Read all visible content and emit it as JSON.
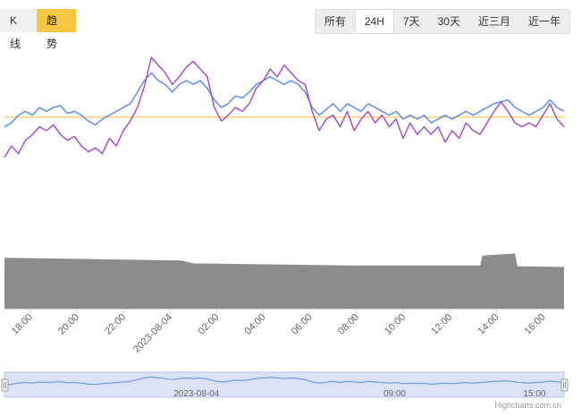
{
  "tabs": [
    {
      "label": "K线",
      "active": false
    },
    {
      "label": "趋势",
      "active": true
    }
  ],
  "ranges": [
    {
      "label": "所有",
      "selected": false
    },
    {
      "label": "24H",
      "selected": true
    },
    {
      "label": "7天",
      "selected": false
    },
    {
      "label": "30天",
      "selected": false
    },
    {
      "label": "近三月",
      "selected": false
    },
    {
      "label": "近一年",
      "selected": false
    }
  ],
  "credit": "Highcharts.com.cn",
  "colors": {
    "accent": "#f6c744",
    "series_blue": "#5b8ff0",
    "series_purple": "#a84fcb",
    "reference_line": "#f2c94c",
    "volume": "#8c8c8c",
    "navigator_fill": "#dce3f6"
  },
  "chart_data": {
    "type": "line",
    "x_unit": "hours relative to 00:00 on 2023-08-04",
    "x_range": [
      -7.1,
      16.9
    ],
    "x_ticks": [
      {
        "x": -6,
        "label": "18:00"
      },
      {
        "x": -4,
        "label": "20:00"
      },
      {
        "x": -2,
        "label": "22:00"
      },
      {
        "x": 0,
        "label": "2023-08-04"
      },
      {
        "x": 2,
        "label": "02:00"
      },
      {
        "x": 4,
        "label": "04:00"
      },
      {
        "x": 6,
        "label": "06:00"
      },
      {
        "x": 8,
        "label": "08:00"
      },
      {
        "x": 10,
        "label": "10:00"
      },
      {
        "x": 12,
        "label": "12:00"
      },
      {
        "x": 14,
        "label": "14:00"
      },
      {
        "x": 16,
        "label": "16:00"
      }
    ],
    "y_range": [
      0,
      100
    ],
    "reference_line": 67,
    "series": [
      {
        "key": "blue",
        "values": [
          [
            -7.1,
            62
          ],
          [
            -6.8,
            64
          ],
          [
            -6.5,
            68
          ],
          [
            -6.2,
            70
          ],
          [
            -5.9,
            68
          ],
          [
            -5.6,
            72
          ],
          [
            -5.3,
            70
          ],
          [
            -5,
            72
          ],
          [
            -4.7,
            73
          ],
          [
            -4.4,
            69
          ],
          [
            -4.1,
            70
          ],
          [
            -3.8,
            68
          ],
          [
            -3.5,
            65
          ],
          [
            -3.2,
            63
          ],
          [
            -2.9,
            66
          ],
          [
            -2.6,
            68
          ],
          [
            -2.3,
            70
          ],
          [
            -2,
            72
          ],
          [
            -1.7,
            74
          ],
          [
            -1.4,
            80
          ],
          [
            -1.1,
            86
          ],
          [
            -0.8,
            90
          ],
          [
            -0.5,
            86
          ],
          [
            -0.2,
            84
          ],
          [
            0.1,
            80
          ],
          [
            0.4,
            84
          ],
          [
            0.7,
            86
          ],
          [
            1,
            84
          ],
          [
            1.3,
            86
          ],
          [
            1.6,
            82
          ],
          [
            1.9,
            76
          ],
          [
            2.2,
            72
          ],
          [
            2.5,
            74
          ],
          [
            2.8,
            78
          ],
          [
            3.1,
            77
          ],
          [
            3.4,
            80
          ],
          [
            3.7,
            84
          ],
          [
            4,
            86
          ],
          [
            4.3,
            88
          ],
          [
            4.6,
            86
          ],
          [
            4.9,
            84
          ],
          [
            5.2,
            86
          ],
          [
            5.5,
            84
          ],
          [
            5.8,
            80
          ],
          [
            6.1,
            72
          ],
          [
            6.4,
            68
          ],
          [
            6.7,
            71
          ],
          [
            7,
            74
          ],
          [
            7.3,
            70
          ],
          [
            7.6,
            74
          ],
          [
            7.9,
            72
          ],
          [
            8.2,
            70
          ],
          [
            8.5,
            74
          ],
          [
            8.8,
            72
          ],
          [
            9.1,
            70
          ],
          [
            9.4,
            68
          ],
          [
            9.7,
            70
          ],
          [
            10,
            66
          ],
          [
            10.3,
            68
          ],
          [
            10.6,
            66
          ],
          [
            10.9,
            68
          ],
          [
            11.2,
            64
          ],
          [
            11.5,
            66
          ],
          [
            11.8,
            68
          ],
          [
            12.1,
            66
          ],
          [
            12.4,
            68
          ],
          [
            12.7,
            70
          ],
          [
            13,
            68
          ],
          [
            13.3,
            70
          ],
          [
            13.6,
            72
          ],
          [
            13.9,
            74
          ],
          [
            14.2,
            75
          ],
          [
            14.5,
            76
          ],
          [
            14.8,
            72
          ],
          [
            15.1,
            70
          ],
          [
            15.4,
            68
          ],
          [
            15.7,
            70
          ],
          [
            16,
            72
          ],
          [
            16.3,
            76
          ],
          [
            16.6,
            72
          ],
          [
            16.9,
            70
          ]
        ]
      },
      {
        "key": "purple",
        "values": [
          [
            -7.1,
            46
          ],
          [
            -6.8,
            52
          ],
          [
            -6.5,
            48
          ],
          [
            -6.2,
            55
          ],
          [
            -5.9,
            58
          ],
          [
            -5.6,
            62
          ],
          [
            -5.3,
            60
          ],
          [
            -5,
            63
          ],
          [
            -4.7,
            58
          ],
          [
            -4.4,
            55
          ],
          [
            -4.1,
            57
          ],
          [
            -3.8,
            52
          ],
          [
            -3.5,
            49
          ],
          [
            -3.2,
            51
          ],
          [
            -2.9,
            48
          ],
          [
            -2.6,
            56
          ],
          [
            -2.3,
            52
          ],
          [
            -2,
            60
          ],
          [
            -1.7,
            65
          ],
          [
            -1.4,
            72
          ],
          [
            -1.1,
            83
          ],
          [
            -0.8,
            98
          ],
          [
            -0.5,
            94
          ],
          [
            -0.2,
            90
          ],
          [
            0.1,
            84
          ],
          [
            0.4,
            88
          ],
          [
            0.7,
            93
          ],
          [
            1,
            96
          ],
          [
            1.3,
            92
          ],
          [
            1.6,
            88
          ],
          [
            1.9,
            72
          ],
          [
            2.2,
            65
          ],
          [
            2.5,
            68
          ],
          [
            2.8,
            72
          ],
          [
            3.1,
            70
          ],
          [
            3.4,
            74
          ],
          [
            3.7,
            82
          ],
          [
            4,
            86
          ],
          [
            4.3,
            92
          ],
          [
            4.6,
            88
          ],
          [
            4.9,
            94
          ],
          [
            5.2,
            90
          ],
          [
            5.5,
            86
          ],
          [
            5.8,
            84
          ],
          [
            6.1,
            70
          ],
          [
            6.4,
            60
          ],
          [
            6.7,
            66
          ],
          [
            7,
            68
          ],
          [
            7.3,
            62
          ],
          [
            7.6,
            70
          ],
          [
            7.9,
            60
          ],
          [
            8.2,
            66
          ],
          [
            8.5,
            70
          ],
          [
            8.8,
            64
          ],
          [
            9.1,
            68
          ],
          [
            9.4,
            62
          ],
          [
            9.7,
            66
          ],
          [
            10,
            56
          ],
          [
            10.3,
            64
          ],
          [
            10.6,
            58
          ],
          [
            10.9,
            62
          ],
          [
            11.2,
            58
          ],
          [
            11.5,
            62
          ],
          [
            11.8,
            54
          ],
          [
            12.1,
            60
          ],
          [
            12.4,
            56
          ],
          [
            12.7,
            64
          ],
          [
            13,
            60
          ],
          [
            13.3,
            58
          ],
          [
            13.6,
            64
          ],
          [
            13.9,
            70
          ],
          [
            14.2,
            75
          ],
          [
            14.5,
            70
          ],
          [
            14.8,
            64
          ],
          [
            15.1,
            62
          ],
          [
            15.4,
            64
          ],
          [
            15.7,
            62
          ],
          [
            16,
            68
          ],
          [
            16.3,
            74
          ],
          [
            16.6,
            66
          ],
          [
            16.9,
            62
          ]
        ]
      }
    ],
    "volume": {
      "y_range": [
        0,
        100
      ],
      "values": [
        [
          -7.1,
          72
        ],
        [
          -3,
          70
        ],
        [
          0.5,
          68
        ],
        [
          1,
          64
        ],
        [
          8,
          61
        ],
        [
          13.3,
          61
        ],
        [
          13.4,
          75
        ],
        [
          14.8,
          78
        ],
        [
          14.9,
          60
        ],
        [
          16.9,
          59
        ]
      ]
    },
    "navigator": {
      "labels": [
        {
          "x": 0,
          "label": "2023-08-04"
        },
        {
          "x": 9,
          "label": "09:00"
        },
        {
          "x": 15,
          "label": "15:00"
        }
      ]
    }
  }
}
